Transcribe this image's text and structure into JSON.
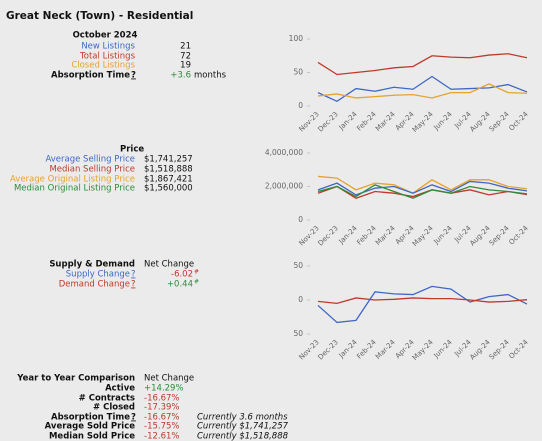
{
  "title": "Great Neck (Town) - Residential",
  "listings": {
    "header": "October 2024",
    "rows": [
      {
        "label": "New Listings",
        "value": "21"
      },
      {
        "label": "Total Listings",
        "value": "72"
      },
      {
        "label": "Closed Listings",
        "value": "19"
      }
    ],
    "absorption": {
      "label": "Absorption Time",
      "help": "?",
      "value": "+3.6",
      "unit": "months"
    }
  },
  "price": {
    "header": "Price",
    "rows": [
      {
        "label": "Average Selling Price",
        "value": "$1,741,257"
      },
      {
        "label": "Median Selling Price",
        "value": "$1,518,888"
      },
      {
        "label": "Average Original Listing Price",
        "value": "$1,867,421"
      },
      {
        "label": "Median Original Listing Price",
        "value": "$1,560,000"
      }
    ]
  },
  "supply_demand": {
    "header": "Supply & Demand",
    "column": "Net Change",
    "rows": [
      {
        "label": "Supply Change",
        "help": "?",
        "value": "-6.02",
        "suffix": "#"
      },
      {
        "label": "Demand Change",
        "help": "?",
        "value": "+0.44",
        "suffix": "#"
      }
    ]
  },
  "comparison": {
    "header": "Year to Year Comparison",
    "column": "Net Change",
    "rows": [
      {
        "label": "Active",
        "value": "+14.29%"
      },
      {
        "label": "# Contracts",
        "value": "-16.67%"
      },
      {
        "label": "# Closed",
        "value": "-17.39%"
      },
      {
        "label": "Absorption Time",
        "help": "?",
        "value": "-16.67%",
        "note": "Currently 3.6 months"
      },
      {
        "label": "Average Sold Price",
        "value": "-15.75%",
        "note": "Currently $1,741,257"
      },
      {
        "label": "Median Sold Price",
        "value": "-12.61%",
        "note": "Currently $1,518,888"
      }
    ]
  },
  "chart_data": [
    {
      "type": "line",
      "categories": [
        "Nov-23",
        "Dec-23",
        "Jan-24",
        "Feb-24",
        "Mar-24",
        "Apr-24",
        "May-24",
        "Jun-24",
        "Jul-24",
        "Aug-24",
        "Sep-24",
        "Oct-24"
      ],
      "ylim": [
        0,
        100
      ],
      "yticks": [
        0,
        50,
        100
      ],
      "series": [
        {
          "name": "Total Listings",
          "color": "#c0392b",
          "values": [
            65,
            47,
            50,
            53,
            57,
            59,
            75,
            73,
            72,
            76,
            78,
            72
          ]
        },
        {
          "name": "New Listings",
          "color": "#3f67c6",
          "values": [
            20,
            7,
            26,
            22,
            28,
            25,
            44,
            25,
            26,
            27,
            32,
            21
          ]
        },
        {
          "name": "Closed Listings",
          "color": "#e6a32c",
          "values": [
            15,
            18,
            12,
            14,
            16,
            17,
            12,
            20,
            20,
            33,
            20,
            19
          ]
        }
      ]
    },
    {
      "type": "line",
      "categories": [
        "Nov-23",
        "Dec-23",
        "Jan-24",
        "Feb-24",
        "Mar-24",
        "Apr-24",
        "May-24",
        "Jun-24",
        "Jul-24",
        "Aug-24",
        "Sep-24",
        "Oct-24"
      ],
      "ylim": [
        0,
        4000000
      ],
      "yticks": [
        0,
        {
          "value": 2000000,
          "label": "2,000,000"
        },
        {
          "value": 4000000,
          "label": "4,000,000"
        }
      ],
      "series": [
        {
          "name": "Average Original Listing Price",
          "color": "#e6a32c",
          "values": [
            2600000,
            2500000,
            1800000,
            2200000,
            2100000,
            1600000,
            2400000,
            1800000,
            2400000,
            2400000,
            2000000,
            1867421
          ]
        },
        {
          "name": "Average Selling Price",
          "color": "#3f67c6",
          "values": [
            1800000,
            2200000,
            1500000,
            1900000,
            2000000,
            1600000,
            2100000,
            1700000,
            2300000,
            2200000,
            1900000,
            1741257
          ]
        },
        {
          "name": "Median Selling Price",
          "color": "#c0392b",
          "values": [
            1600000,
            2000000,
            1300000,
            1700000,
            1600000,
            1400000,
            1800000,
            1600000,
            1800000,
            1500000,
            1700000,
            1518888
          ]
        },
        {
          "name": "Median Original Listing Price",
          "color": "#2e8b3a",
          "values": [
            1700000,
            2000000,
            1400000,
            2100000,
            1700000,
            1300000,
            1800000,
            1600000,
            2000000,
            1800000,
            1700000,
            1560000
          ]
        }
      ]
    },
    {
      "type": "line",
      "categories": [
        "Nov-23",
        "Dec-23",
        "Jan-24",
        "Feb-24",
        "Mar-24",
        "Apr-24",
        "May-24",
        "Jun-24",
        "Jul-24",
        "Aug-24",
        "Sep-24",
        "Oct-24"
      ],
      "ylim": [
        -50,
        50
      ],
      "yticks": [
        {
          "value": -50,
          "label": "50"
        },
        0,
        50
      ],
      "series": [
        {
          "name": "Supply Change",
          "color": "#3f67c6",
          "values": [
            -8,
            -33,
            -30,
            12,
            9,
            8,
            20,
            16,
            -3,
            5,
            8,
            -6.02
          ]
        },
        {
          "name": "Demand Change",
          "color": "#c0392b",
          "values": [
            -2,
            -5,
            3,
            0,
            1,
            3,
            2,
            2,
            0,
            -3,
            -2,
            0.44
          ]
        }
      ]
    }
  ]
}
